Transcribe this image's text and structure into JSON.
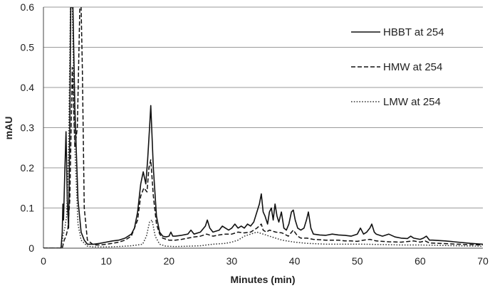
{
  "chart_data": {
    "type": "line",
    "title": "",
    "xlabel": "Minutes (min)",
    "ylabel": "mAU",
    "xlim": [
      0,
      70
    ],
    "ylim": [
      0,
      0.6
    ],
    "xticks": [
      0,
      10,
      20,
      30,
      40,
      50,
      60,
      70
    ],
    "yticks": [
      0,
      0.1,
      0.2,
      0.3,
      0.4,
      0.5,
      0.6
    ],
    "ytick_labels": [
      "0",
      "0.1",
      "0.2",
      "0.3",
      "0.4",
      "0.5",
      "0.6"
    ],
    "grid": "horizontal",
    "legend_position": "top-right",
    "series": [
      {
        "name": "HBBT at 254",
        "style": "solid",
        "color": "#111111",
        "x": [
          0,
          2.8,
          3.0,
          3.1,
          3.2,
          3.4,
          3.6,
          3.8,
          4.0,
          4.2,
          4.35,
          4.5,
          4.7,
          5.0,
          5.5,
          6.0,
          6.5,
          7.0,
          8.0,
          9.0,
          10.0,
          11.0,
          12.0,
          13.0,
          14.0,
          14.5,
          15.0,
          15.5,
          15.9,
          16.3,
          16.6,
          16.9,
          17.1,
          17.5,
          18.0,
          18.5,
          19.0,
          19.5,
          20.0,
          20.3,
          20.6,
          21.0,
          22.0,
          23.0,
          23.5,
          24.0,
          25.0,
          25.8,
          26.1,
          26.5,
          27.0,
          28.0,
          28.5,
          29.0,
          29.5,
          30.0,
          30.5,
          31.0,
          31.5,
          32.0,
          32.5,
          33.0,
          33.5,
          34.0,
          34.4,
          34.7,
          35.0,
          35.3,
          35.7,
          36.0,
          36.3,
          36.6,
          36.9,
          37.2,
          37.5,
          37.9,
          38.3,
          38.7,
          39.1,
          39.5,
          39.8,
          40.1,
          40.5,
          41.0,
          41.5,
          41.9,
          42.2,
          42.6,
          43.0,
          44.0,
          45.0,
          46.0,
          47.0,
          48.0,
          49.0,
          50.0,
          50.5,
          51.0,
          51.5,
          52.0,
          52.3,
          52.7,
          53.0,
          54.0,
          55.0,
          56.0,
          57.0,
          58.0,
          58.5,
          59.0,
          60.0,
          60.5,
          61.0,
          61.5,
          62.0,
          64.0,
          66.0,
          68.0,
          70.0
        ],
        "y": [
          0,
          0,
          0.04,
          0.11,
          0.07,
          0.19,
          0.29,
          0.12,
          0.05,
          0.3,
          0.6,
          0.6,
          0.6,
          0.35,
          0.12,
          0.04,
          0.02,
          0.01,
          0.01,
          0.012,
          0.015,
          0.018,
          0.02,
          0.025,
          0.035,
          0.05,
          0.09,
          0.16,
          0.19,
          0.16,
          0.22,
          0.3,
          0.355,
          0.2,
          0.08,
          0.04,
          0.03,
          0.028,
          0.03,
          0.04,
          0.03,
          0.03,
          0.032,
          0.035,
          0.045,
          0.035,
          0.04,
          0.055,
          0.07,
          0.05,
          0.04,
          0.045,
          0.055,
          0.05,
          0.045,
          0.05,
          0.06,
          0.05,
          0.055,
          0.05,
          0.06,
          0.055,
          0.065,
          0.09,
          0.11,
          0.135,
          0.09,
          0.08,
          0.06,
          0.09,
          0.1,
          0.07,
          0.11,
          0.08,
          0.065,
          0.09,
          0.05,
          0.045,
          0.06,
          0.09,
          0.095,
          0.07,
          0.05,
          0.045,
          0.05,
          0.07,
          0.09,
          0.05,
          0.035,
          0.033,
          0.032,
          0.035,
          0.033,
          0.032,
          0.03,
          0.035,
          0.05,
          0.035,
          0.04,
          0.05,
          0.06,
          0.04,
          0.035,
          0.03,
          0.035,
          0.028,
          0.025,
          0.024,
          0.03,
          0.025,
          0.022,
          0.025,
          0.03,
          0.02,
          0.02,
          0.018,
          0.015,
          0.012,
          0.01
        ]
      },
      {
        "name": "HMW at 254",
        "style": "dashed",
        "color": "#111111",
        "x": [
          0,
          3.0,
          3.3,
          3.6,
          3.9,
          4.2,
          4.6,
          5.0,
          5.4,
          5.8,
          6.0,
          6.2,
          6.5,
          7.0,
          8.0,
          9.0,
          10.0,
          11.0,
          12.0,
          13.0,
          14.0,
          15.0,
          15.5,
          16.0,
          16.5,
          16.8,
          17.1,
          17.5,
          18.0,
          18.5,
          19.0,
          20.0,
          21.0,
          22.0,
          23.0,
          24.0,
          25.0,
          26.0,
          27.0,
          28.0,
          29.0,
          30.0,
          31.0,
          32.0,
          33.0,
          34.0,
          34.7,
          35.0,
          35.5,
          36.0,
          37.0,
          38.0,
          39.0,
          39.8,
          40.5,
          41.0,
          42.0,
          43.0,
          45.0,
          47.0,
          48.0,
          49.0,
          50.0,
          51.0,
          52.0,
          53.0,
          55.0,
          57.0,
          59.0,
          60.0,
          60.8,
          61.5,
          63.0,
          66.0,
          70.0
        ],
        "y": [
          0,
          0,
          0.02,
          0.03,
          0.05,
          0.12,
          0.45,
          0.25,
          0.3,
          0.6,
          0.6,
          0.45,
          0.1,
          0.02,
          0.008,
          0.008,
          0.01,
          0.012,
          0.015,
          0.02,
          0.03,
          0.07,
          0.13,
          0.15,
          0.14,
          0.2,
          0.22,
          0.13,
          0.06,
          0.035,
          0.025,
          0.02,
          0.02,
          0.022,
          0.025,
          0.028,
          0.03,
          0.035,
          0.03,
          0.033,
          0.035,
          0.035,
          0.04,
          0.038,
          0.04,
          0.05,
          0.06,
          0.045,
          0.04,
          0.045,
          0.04,
          0.038,
          0.03,
          0.045,
          0.03,
          0.025,
          0.025,
          0.022,
          0.02,
          0.02,
          0.018,
          0.018,
          0.017,
          0.02,
          0.022,
          0.018,
          0.016,
          0.015,
          0.018,
          0.015,
          0.018,
          0.013,
          0.012,
          0.01,
          0.008
        ]
      },
      {
        "name": "LMW at 254",
        "style": "dotted",
        "color": "#333333",
        "x": [
          0,
          2.8,
          3.1,
          3.4,
          3.7,
          4.0,
          4.3,
          4.6,
          5.0,
          5.5,
          6.0,
          7.0,
          8.0,
          10.0,
          12.0,
          14.0,
          15.0,
          15.8,
          16.4,
          16.9,
          17.3,
          17.8,
          18.5,
          19.5,
          21.0,
          23.0,
          25.0,
          27.0,
          29.0,
          30.0,
          31.0,
          32.0,
          33.0,
          34.0,
          35.0,
          36.0,
          37.0,
          38.0,
          40.0,
          42.0,
          45.0,
          48.0,
          51.0,
          54.0,
          57.0,
          60.0,
          63.0,
          66.0,
          70.0
        ],
        "y": [
          0,
          0,
          0.03,
          0.05,
          0.08,
          0.25,
          0.6,
          0.6,
          0.25,
          0.06,
          0.02,
          0.005,
          0.003,
          0.003,
          0.004,
          0.006,
          0.008,
          0.01,
          0.03,
          0.065,
          0.07,
          0.03,
          0.01,
          0.005,
          0.004,
          0.005,
          0.006,
          0.01,
          0.012,
          0.015,
          0.02,
          0.03,
          0.035,
          0.04,
          0.035,
          0.03,
          0.025,
          0.02,
          0.015,
          0.012,
          0.01,
          0.01,
          0.01,
          0.009,
          0.008,
          0.008,
          0.007,
          0.006,
          0.005
        ]
      }
    ]
  }
}
